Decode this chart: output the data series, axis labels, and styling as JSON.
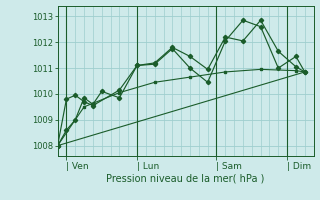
{
  "xlabel": "Pression niveau de la mer( hPa )",
  "background_color": "#ceeaea",
  "grid_color": "#9ecece",
  "line_color": "#1a5c2a",
  "ylim": [
    1007.6,
    1013.4
  ],
  "yticks": [
    1008,
    1009,
    1010,
    1011,
    1012,
    1013
  ],
  "day_labels": [
    "| Ven",
    "| Lun",
    "| Sam",
    "| Dim"
  ],
  "day_positions": [
    0.5,
    4.5,
    9.0,
    13.0
  ],
  "xlim": [
    0,
    14.5
  ],
  "series1_x": [
    0,
    0.5,
    1.0,
    1.5,
    2.0,
    2.5,
    3.5,
    4.5,
    5.5,
    6.5,
    7.5,
    8.5,
    9.5,
    10.5,
    11.5,
    12.5,
    13.5,
    14.0
  ],
  "series1_y": [
    1008.0,
    1008.6,
    1009.0,
    1009.85,
    1009.6,
    1010.1,
    1009.85,
    1011.1,
    1011.15,
    1011.75,
    1011.0,
    1010.45,
    1012.05,
    1012.85,
    1012.6,
    1011.0,
    1011.45,
    1010.85
  ],
  "series2_x": [
    0,
    0.5,
    1.0,
    1.5,
    2.0,
    3.5,
    4.5,
    5.5,
    6.5,
    7.5,
    8.5,
    9.5,
    10.5,
    11.5,
    12.5,
    13.5,
    14.0
  ],
  "series2_y": [
    1008.0,
    1009.8,
    1009.95,
    1009.7,
    1009.55,
    1010.15,
    1011.1,
    1011.2,
    1011.8,
    1011.45,
    1010.95,
    1012.2,
    1012.05,
    1012.85,
    1011.65,
    1011.05,
    1010.85
  ],
  "series3_x": [
    0,
    1.5,
    3.5,
    5.5,
    7.5,
    9.5,
    11.5,
    13.5,
    14.0
  ],
  "series3_y": [
    1008.0,
    1009.5,
    1010.05,
    1010.45,
    1010.65,
    1010.85,
    1010.95,
    1010.9,
    1010.85
  ],
  "trend_x": [
    0,
    14.0
  ],
  "trend_y": [
    1008.0,
    1010.85
  ],
  "vlines_x": [
    0.5,
    4.5,
    9.0,
    13.0
  ]
}
